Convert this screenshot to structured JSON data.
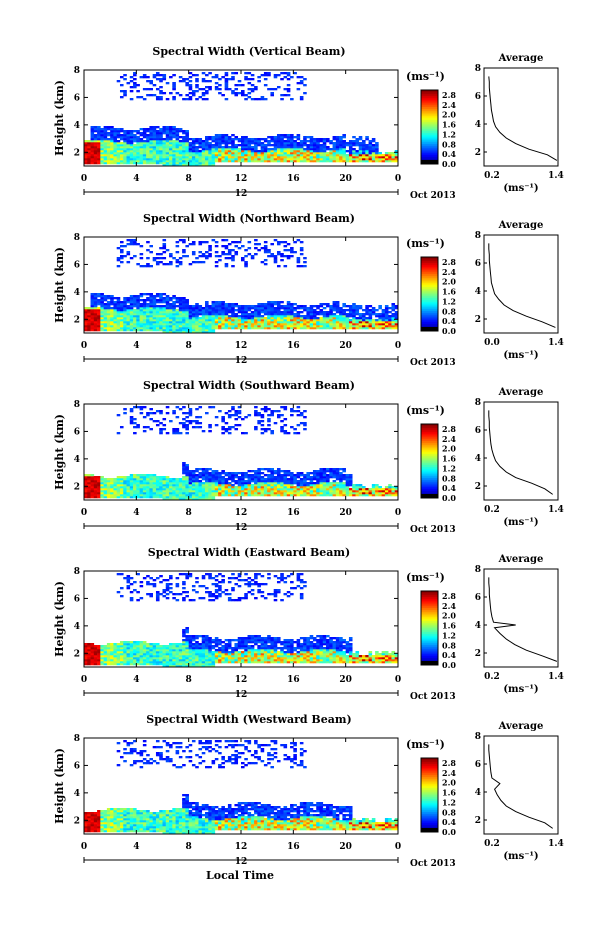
{
  "figure": {
    "xlabel": "Local Time"
  },
  "chart_data": [
    {
      "type": "heatmap",
      "title": "Spectral Width (Vertical Beam)",
      "ylabel": "Height (km)",
      "x_ticks": [
        "0",
        "4",
        "8",
        "12",
        "16",
        "20",
        "0"
      ],
      "x_date_label": "12",
      "date_label": "Oct 2013",
      "xlim": [
        0,
        24
      ],
      "ylim": [
        1,
        8
      ],
      "y_ticks": [
        "2",
        "4",
        "6",
        "8"
      ],
      "colorbar": {
        "unit": "(ms⁻¹)",
        "ticks": [
          "0.0",
          "0.4",
          "0.8",
          "1.2",
          "1.6",
          "2.0",
          "2.4",
          "2.8"
        ],
        "range": [
          0,
          3.0
        ]
      },
      "avg_profile": {
        "title": "Average",
        "xlabel": "(ms⁻¹)",
        "x_ticks": [
          "0.2",
          "1.4"
        ],
        "y_ticks": [
          "2",
          "4",
          "6",
          "8"
        ],
        "xlim": [
          0.0,
          1.4
        ],
        "ylim": [
          1,
          8
        ],
        "heights": [
          1.4,
          1.8,
          2.2,
          2.6,
          3.0,
          3.4,
          3.8,
          4.2,
          4.6,
          5.0,
          5.4,
          5.8,
          6.2,
          6.6,
          7.0,
          7.4
        ],
        "values": [
          1.38,
          1.2,
          0.85,
          0.6,
          0.42,
          0.3,
          0.22,
          0.18,
          0.16,
          0.14,
          0.13,
          0.12,
          0.11,
          0.1,
          0.1,
          0.09
        ]
      }
    },
    {
      "type": "heatmap",
      "title": "Spectral Width (Northward Beam)",
      "ylabel": "Height (km)",
      "x_ticks": [
        "0",
        "4",
        "8",
        "12",
        "16",
        "20",
        "0"
      ],
      "x_date_label": "12",
      "date_label": "Oct 2013",
      "xlim": [
        0,
        24
      ],
      "ylim": [
        1,
        8
      ],
      "y_ticks": [
        "2",
        "4",
        "6",
        "8"
      ],
      "colorbar": {
        "unit": "(ms⁻¹)",
        "ticks": [
          "0.0",
          "0.4",
          "0.8",
          "1.2",
          "1.6",
          "2.0",
          "2.4",
          "2.8"
        ],
        "range": [
          0,
          3.0
        ]
      },
      "avg_profile": {
        "title": "Average",
        "xlabel": "(ms⁻¹)",
        "x_ticks": [
          "0.0",
          "1.4"
        ],
        "y_ticks": [
          "2",
          "4",
          "6",
          "8"
        ],
        "xlim": [
          0.0,
          1.4
        ],
        "ylim": [
          1,
          8
        ],
        "heights": [
          1.4,
          1.8,
          2.2,
          2.6,
          3.0,
          3.4,
          3.8,
          4.2,
          4.6,
          5.0,
          5.4,
          5.8,
          6.2,
          6.6,
          7.0,
          7.4
        ],
        "values": [
          1.35,
          1.1,
          0.8,
          0.55,
          0.38,
          0.28,
          0.2,
          0.17,
          0.14,
          0.13,
          0.12,
          0.11,
          0.1,
          0.1,
          0.09,
          0.09
        ]
      }
    },
    {
      "type": "heatmap",
      "title": "Spectral Width (Southward Beam)",
      "ylabel": "Height (km)",
      "x_ticks": [
        "0",
        "4",
        "8",
        "12",
        "16",
        "20",
        "0"
      ],
      "x_date_label": "12",
      "date_label": "Oct 2013",
      "xlim": [
        0,
        24
      ],
      "ylim": [
        1,
        8
      ],
      "y_ticks": [
        "2",
        "4",
        "6",
        "8"
      ],
      "colorbar": {
        "unit": "(ms⁻¹)",
        "ticks": [
          "0.0",
          "0.4",
          "0.8",
          "1.2",
          "1.6",
          "2.0",
          "2.4",
          "2.8"
        ],
        "range": [
          0,
          3.0
        ]
      },
      "avg_profile": {
        "title": "Average",
        "xlabel": "(ms⁻¹)",
        "x_ticks": [
          "0.2",
          "1.4"
        ],
        "y_ticks": [
          "2",
          "4",
          "6",
          "8"
        ],
        "xlim": [
          0.0,
          1.4
        ],
        "ylim": [
          1,
          8
        ],
        "heights": [
          1.4,
          1.8,
          2.2,
          2.6,
          3.0,
          3.4,
          3.8,
          4.2,
          4.6,
          5.0,
          5.4,
          5.8,
          6.2,
          6.6,
          7.0,
          7.4
        ],
        "values": [
          1.3,
          1.15,
          0.9,
          0.6,
          0.42,
          0.3,
          0.22,
          0.18,
          0.15,
          0.13,
          0.12,
          0.11,
          0.1,
          0.1,
          0.09,
          0.09
        ]
      }
    },
    {
      "type": "heatmap",
      "title": "Spectral Width (Eastward Beam)",
      "ylabel": "Height (km)",
      "x_ticks": [
        "0",
        "4",
        "8",
        "12",
        "16",
        "20",
        "0"
      ],
      "x_date_label": "12",
      "date_label": "Oct 2013",
      "xlim": [
        0,
        24
      ],
      "ylim": [
        1,
        8
      ],
      "y_ticks": [
        "2",
        "4",
        "6",
        "8"
      ],
      "colorbar": {
        "unit": "(ms⁻¹)",
        "ticks": [
          "0.0",
          "0.4",
          "0.8",
          "1.2",
          "1.6",
          "2.0",
          "2.4",
          "2.8"
        ],
        "range": [
          0,
          3.0
        ]
      },
      "avg_profile": {
        "title": "Average",
        "xlabel": "(ms⁻¹)",
        "x_ticks": [
          "0.2",
          "1.4"
        ],
        "y_ticks": [
          "2",
          "4",
          "6",
          "8"
        ],
        "xlim": [
          0.0,
          1.4
        ],
        "ylim": [
          1,
          8
        ],
        "heights": [
          1.4,
          1.8,
          2.2,
          2.6,
          3.0,
          3.4,
          3.8,
          4.0,
          4.2,
          4.6,
          5.0,
          5.4,
          5.8,
          6.2,
          6.6,
          7.0,
          7.4
        ],
        "values": [
          1.38,
          1.1,
          0.8,
          0.58,
          0.42,
          0.3,
          0.2,
          0.6,
          0.18,
          0.15,
          0.13,
          0.12,
          0.11,
          0.1,
          0.1,
          0.09,
          0.09
        ]
      }
    },
    {
      "type": "heatmap",
      "title": "Spectral Width (Westward Beam)",
      "ylabel": "Height (km)",
      "x_ticks": [
        "0",
        "4",
        "8",
        "12",
        "16",
        "20",
        "0"
      ],
      "x_date_label": "12",
      "date_label": "Oct 2013",
      "xlim": [
        0,
        24
      ],
      "ylim": [
        1,
        8
      ],
      "y_ticks": [
        "2",
        "4",
        "6",
        "8"
      ],
      "colorbar": {
        "unit": "(ms⁻¹)",
        "ticks": [
          "0.0",
          "0.4",
          "0.8",
          "1.2",
          "1.6",
          "2.0",
          "2.4",
          "2.8"
        ],
        "range": [
          0,
          3.0
        ]
      },
      "avg_profile": {
        "title": "Average",
        "xlabel": "(ms⁻¹)",
        "x_ticks": [
          "0.2",
          "1.4"
        ],
        "y_ticks": [
          "2",
          "4",
          "6",
          "8"
        ],
        "xlim": [
          0.0,
          1.4
        ],
        "ylim": [
          1,
          8
        ],
        "heights": [
          1.4,
          1.8,
          2.2,
          2.6,
          3.0,
          3.4,
          3.8,
          4.2,
          4.6,
          5.0,
          5.4,
          5.8,
          6.2,
          6.6,
          7.0,
          7.4
        ],
        "values": [
          1.3,
          1.15,
          0.85,
          0.6,
          0.42,
          0.32,
          0.25,
          0.2,
          0.3,
          0.15,
          0.13,
          0.12,
          0.11,
          0.1,
          0.09,
          0.09
        ]
      }
    }
  ]
}
